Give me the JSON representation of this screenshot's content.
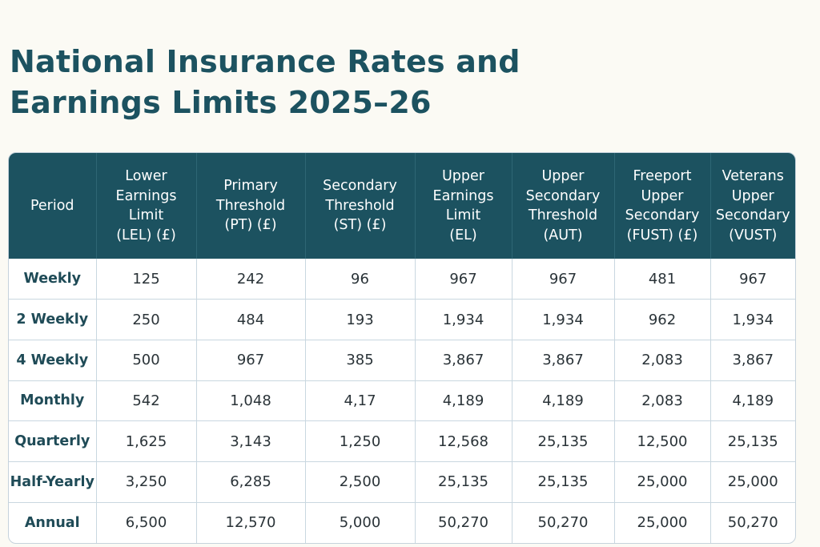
{
  "title": {
    "line1": "National Insurance Rates and",
    "line2": "Earnings Limits 2025–26"
  },
  "table": {
    "headers": [
      [
        "Period"
      ],
      [
        "Lower",
        "Earnings",
        "Limit",
        "(LEL) (£)"
      ],
      [
        "Primary",
        "Threshold",
        "(PT) (£)"
      ],
      [
        "Secondary",
        "Threshold",
        "(ST) (£)"
      ],
      [
        "Upper",
        "Earnings",
        "Limit",
        "(EL)"
      ],
      [
        "Upper",
        "Secondary",
        "Threshold",
        "(AUT)"
      ],
      [
        "Freeport",
        "Upper",
        "Secondary",
        "(FUST) (£)"
      ],
      [
        "Veterans",
        "Upper",
        "Secondary",
        "(VUST)"
      ]
    ],
    "rows": [
      [
        "Weekly",
        "125",
        "242",
        "96",
        "967",
        "967",
        "481",
        "967"
      ],
      [
        "2 Weekly",
        "250",
        "484",
        "193",
        "1,934",
        "1,934",
        "962",
        "1,934"
      ],
      [
        "4 Weekly",
        "500",
        "967",
        "385",
        "3,867",
        "3,867",
        "2,083",
        "3,867"
      ],
      [
        "Monthly",
        "542",
        "1,048",
        "4,17",
        "4,189",
        "4,189",
        "2,083",
        "4,189"
      ],
      [
        "Quarterly",
        "1,625",
        "3,143",
        "1,250",
        "12,568",
        "25,135",
        "12,500",
        "25,135"
      ],
      [
        "Half-Yearly",
        "3,250",
        "6,285",
        "2,500",
        "25,135",
        "25,135",
        "25,000",
        "25,000"
      ],
      [
        "Annual",
        "6,500",
        "12,570",
        "5,000",
        "50,270",
        "50,270",
        "25,000",
        "50,270"
      ]
    ]
  },
  "colors": {
    "header_bg": "#1c5260",
    "title": "#1c5260",
    "page_bg": "#fbfaf4"
  }
}
